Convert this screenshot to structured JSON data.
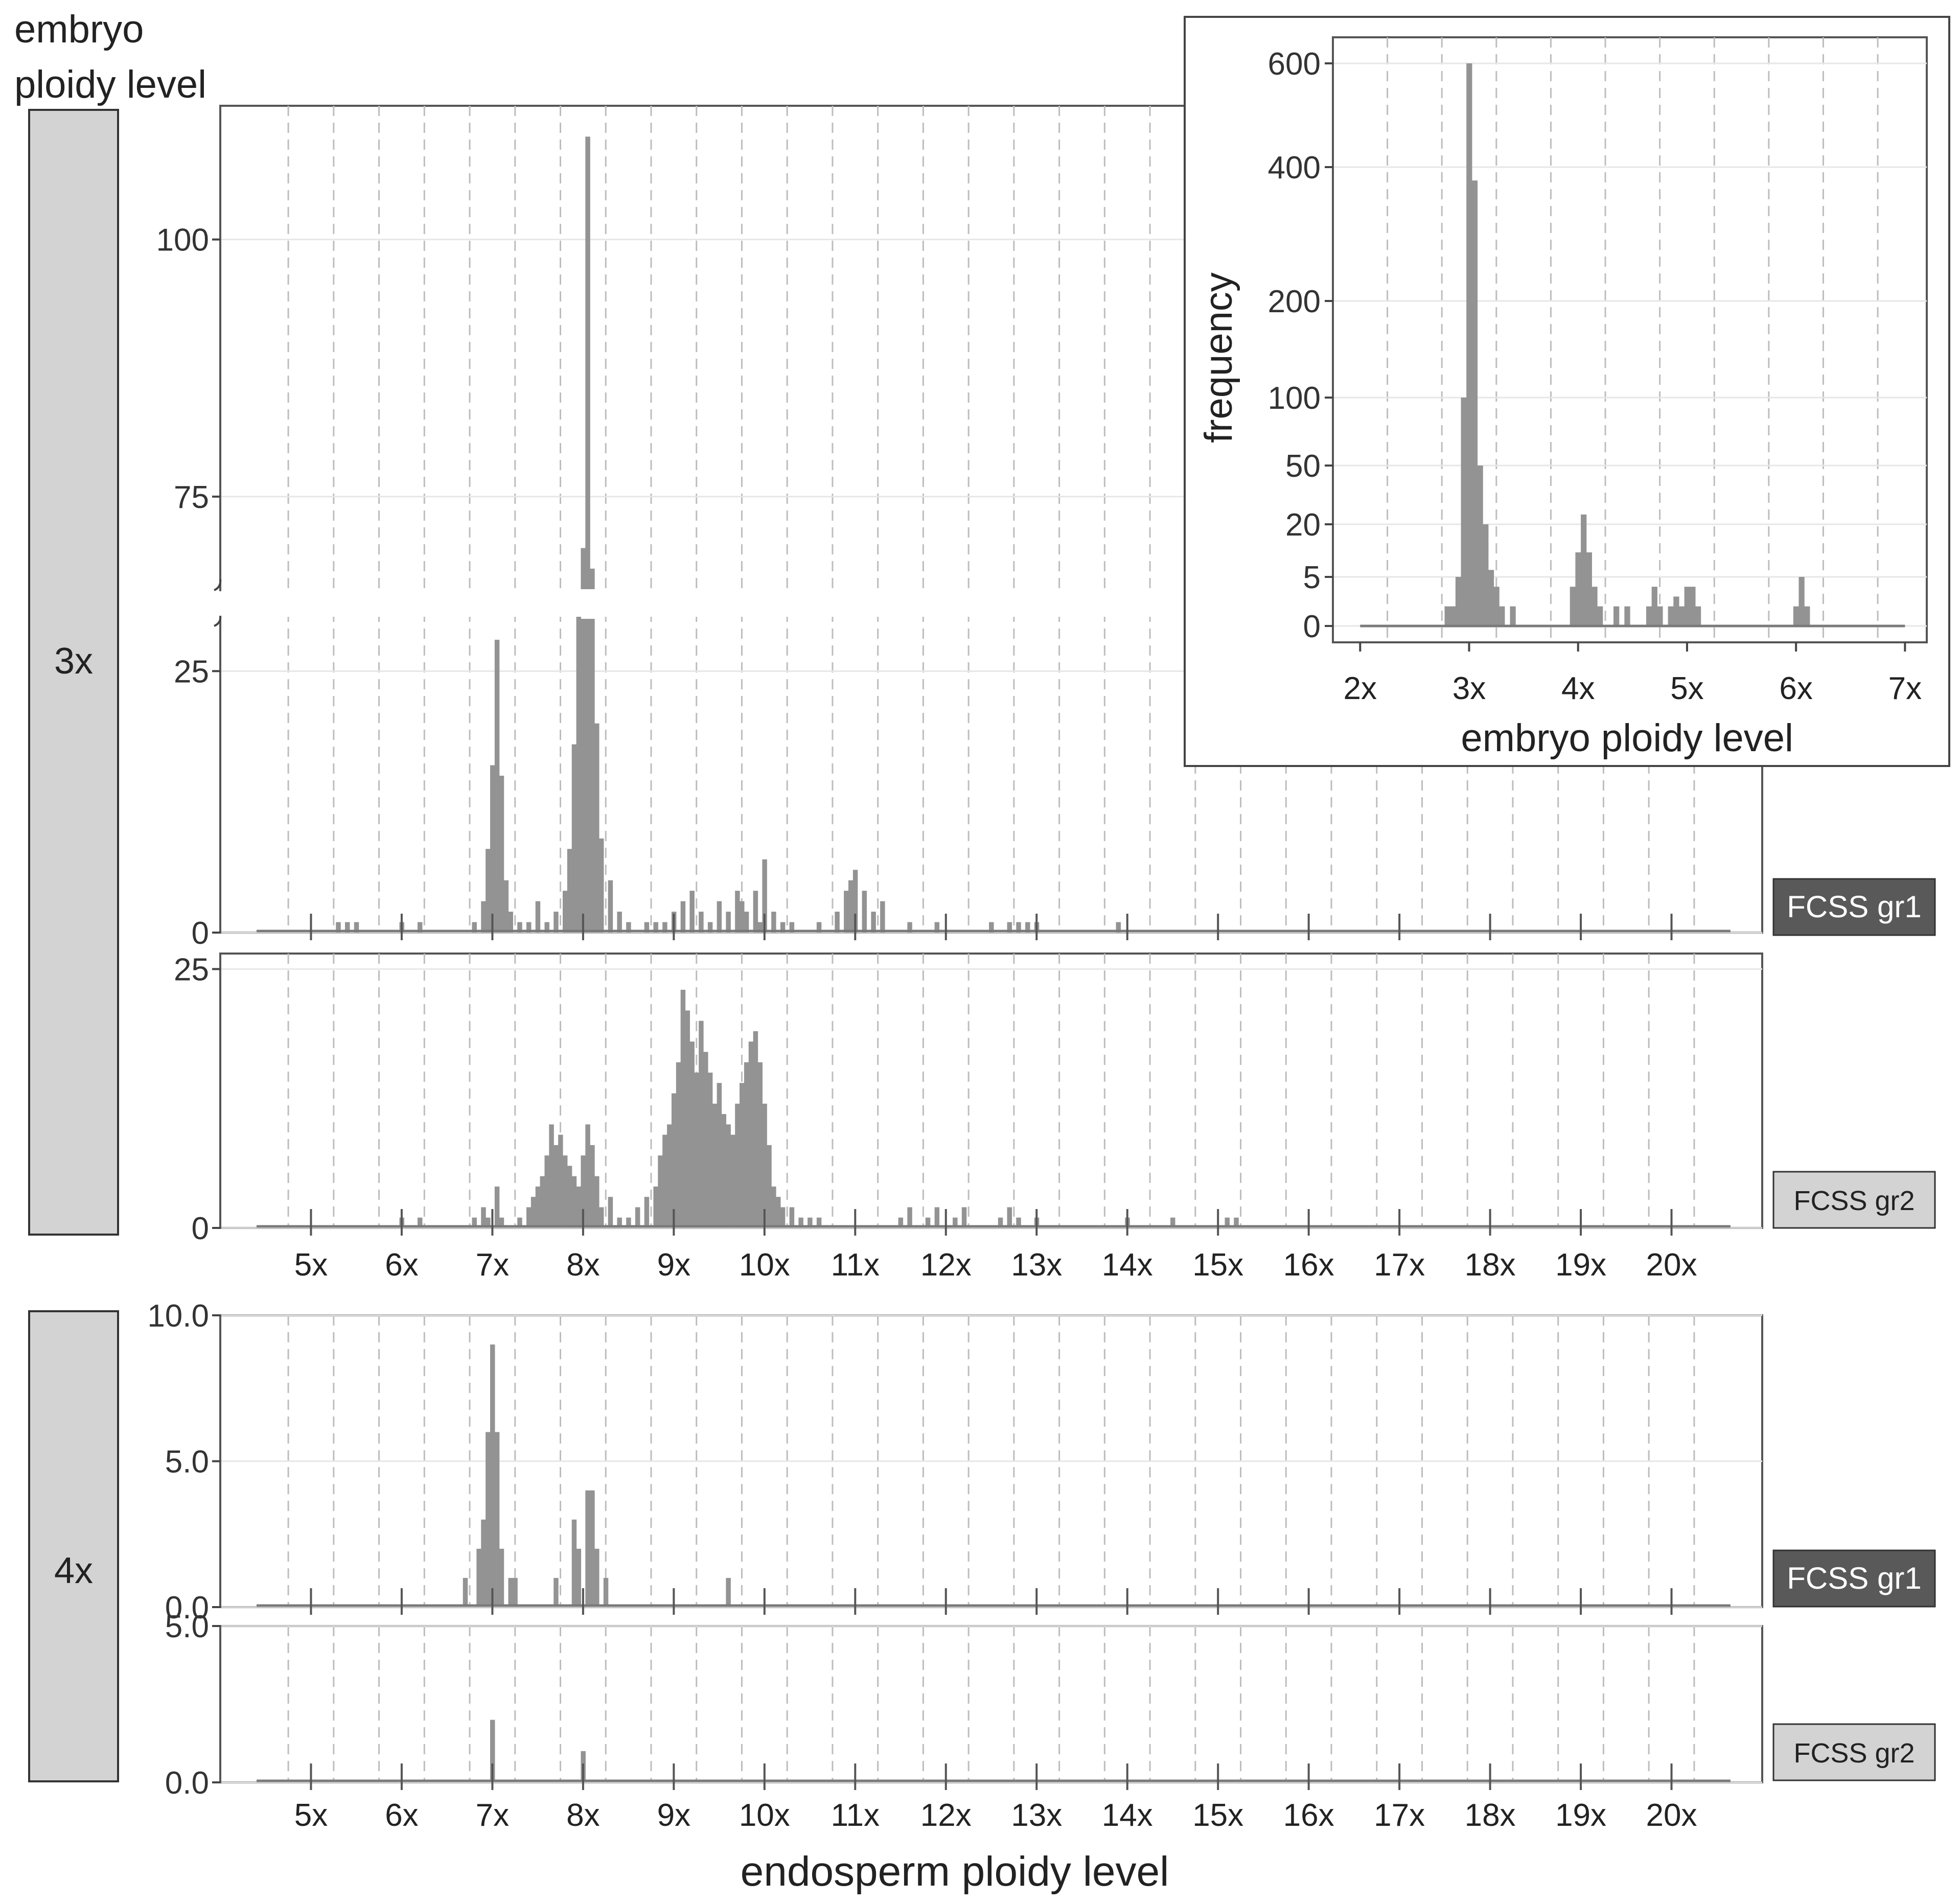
{
  "figure": {
    "corner_title_line1": "embryo",
    "corner_title_line2": "ploidy level",
    "x_axis_title": "endosperm ploidy level",
    "colors": {
      "bar": "#939393",
      "strip_3x": "#d3d3d3",
      "strip_4x": "#d3d3d3",
      "gr1_label_bg": "#595959",
      "gr2_label_bg": "#d3d3d3"
    }
  },
  "chart_data": [
    {
      "id": "3x-gr1",
      "type": "histogram",
      "group": "3x",
      "label": "FCSS gr1",
      "title": "",
      "xlabel": "endosperm ploidy level",
      "ylabel": "",
      "x_range": [
        4.0,
        21.0
      ],
      "broken_y_axis": true,
      "ylim_lower": [
        0,
        30
      ],
      "ylim_upper": [
        66,
        113
      ],
      "yticks_lower": [
        {
          "v": 0,
          "l": "0"
        },
        {
          "v": 25,
          "l": "25"
        }
      ],
      "yticks_upper": [
        {
          "v": 75,
          "l": "75"
        },
        {
          "v": 100,
          "l": "100"
        }
      ],
      "xticks": [
        {
          "v": 5,
          "l": "5x"
        },
        {
          "v": 6,
          "l": "6x"
        },
        {
          "v": 7,
          "l": "7x"
        },
        {
          "v": 8,
          "l": "8x"
        },
        {
          "v": 9,
          "l": "9x"
        },
        {
          "v": 10,
          "l": "10x"
        },
        {
          "v": 11,
          "l": "11x"
        },
        {
          "v": 12,
          "l": "12x"
        },
        {
          "v": 13,
          "l": "13x"
        },
        {
          "v": 14,
          "l": "14x"
        },
        {
          "v": 15,
          "l": "15x"
        },
        {
          "v": 16,
          "l": "16x"
        },
        {
          "v": 17,
          "l": "17x"
        },
        {
          "v": 18,
          "l": "18x"
        },
        {
          "v": 19,
          "l": "19x"
        },
        {
          "v": 20,
          "l": "20x"
        }
      ],
      "bins": [
        [
          5.3,
          1
        ],
        [
          5.4,
          1
        ],
        [
          5.5,
          1
        ],
        [
          6.0,
          1
        ],
        [
          6.2,
          1
        ],
        [
          6.8,
          1
        ],
        [
          6.9,
          3
        ],
        [
          6.95,
          8
        ],
        [
          7.0,
          16
        ],
        [
          7.05,
          28
        ],
        [
          7.1,
          15
        ],
        [
          7.15,
          5
        ],
        [
          7.2,
          2
        ],
        [
          7.3,
          1
        ],
        [
          7.4,
          1
        ],
        [
          7.5,
          3
        ],
        [
          7.6,
          1
        ],
        [
          7.7,
          2
        ],
        [
          7.8,
          4
        ],
        [
          7.85,
          8
        ],
        [
          7.9,
          18
        ],
        [
          7.95,
          32
        ],
        [
          8.0,
          70
        ],
        [
          8.05,
          110
        ],
        [
          8.1,
          68
        ],
        [
          8.15,
          20
        ],
        [
          8.2,
          9
        ],
        [
          8.3,
          5
        ],
        [
          8.4,
          2
        ],
        [
          8.5,
          1
        ],
        [
          8.7,
          1
        ],
        [
          8.8,
          1
        ],
        [
          8.9,
          1
        ],
        [
          9.0,
          2
        ],
        [
          9.1,
          3
        ],
        [
          9.2,
          4
        ],
        [
          9.3,
          2
        ],
        [
          9.4,
          1
        ],
        [
          9.5,
          3
        ],
        [
          9.6,
          2
        ],
        [
          9.7,
          4
        ],
        [
          9.75,
          3
        ],
        [
          9.8,
          2
        ],
        [
          9.9,
          4
        ],
        [
          9.95,
          1
        ],
        [
          10.0,
          7
        ],
        [
          10.1,
          2
        ],
        [
          10.2,
          1
        ],
        [
          10.3,
          1
        ],
        [
          10.6,
          1
        ],
        [
          10.8,
          2
        ],
        [
          10.9,
          4
        ],
        [
          10.95,
          5
        ],
        [
          11.0,
          6
        ],
        [
          11.1,
          4
        ],
        [
          11.2,
          2
        ],
        [
          11.3,
          3
        ],
        [
          11.6,
          1
        ],
        [
          11.9,
          1
        ],
        [
          12.5,
          1
        ],
        [
          12.7,
          1
        ],
        [
          12.8,
          1
        ],
        [
          12.9,
          1
        ],
        [
          13.0,
          1
        ],
        [
          13.9,
          1
        ]
      ]
    },
    {
      "id": "3x-gr2",
      "type": "histogram",
      "group": "3x",
      "label": "FCSS gr2",
      "title": "",
      "xlabel": "endosperm ploidy level",
      "ylabel": "",
      "x_range": [
        4.0,
        21.0
      ],
      "ylim": [
        0,
        26.5
      ],
      "yticks": [
        {
          "v": 0,
          "l": "0"
        },
        {
          "v": 25,
          "l": "25"
        }
      ],
      "xticks": [
        {
          "v": 5,
          "l": "5x"
        },
        {
          "v": 6,
          "l": "6x"
        },
        {
          "v": 7,
          "l": "7x"
        },
        {
          "v": 8,
          "l": "8x"
        },
        {
          "v": 9,
          "l": "9x"
        },
        {
          "v": 10,
          "l": "10x"
        },
        {
          "v": 11,
          "l": "11x"
        },
        {
          "v": 12,
          "l": "12x"
        },
        {
          "v": 13,
          "l": "13x"
        },
        {
          "v": 14,
          "l": "14x"
        },
        {
          "v": 15,
          "l": "15x"
        },
        {
          "v": 16,
          "l": "16x"
        },
        {
          "v": 17,
          "l": "17x"
        },
        {
          "v": 18,
          "l": "18x"
        },
        {
          "v": 19,
          "l": "19x"
        },
        {
          "v": 20,
          "l": "20x"
        }
      ],
      "bins": [
        [
          6.0,
          1
        ],
        [
          6.2,
          1
        ],
        [
          6.8,
          1
        ],
        [
          6.9,
          2
        ],
        [
          6.95,
          1
        ],
        [
          7.05,
          4
        ],
        [
          7.1,
          1
        ],
        [
          7.3,
          1
        ],
        [
          7.4,
          2
        ],
        [
          7.45,
          3
        ],
        [
          7.5,
          4
        ],
        [
          7.55,
          5
        ],
        [
          7.6,
          7
        ],
        [
          7.65,
          10
        ],
        [
          7.7,
          8
        ],
        [
          7.75,
          9
        ],
        [
          7.8,
          7
        ],
        [
          7.85,
          6
        ],
        [
          7.9,
          5
        ],
        [
          7.95,
          4
        ],
        [
          8.0,
          7
        ],
        [
          8.05,
          10
        ],
        [
          8.1,
          8
        ],
        [
          8.15,
          5
        ],
        [
          8.2,
          2
        ],
        [
          8.3,
          3
        ],
        [
          8.4,
          1
        ],
        [
          8.5,
          1
        ],
        [
          8.6,
          2
        ],
        [
          8.7,
          3
        ],
        [
          8.8,
          4
        ],
        [
          8.85,
          7
        ],
        [
          8.9,
          9
        ],
        [
          8.95,
          10
        ],
        [
          9.0,
          13
        ],
        [
          9.05,
          16
        ],
        [
          9.1,
          23
        ],
        [
          9.15,
          21
        ],
        [
          9.2,
          18
        ],
        [
          9.25,
          15
        ],
        [
          9.3,
          20
        ],
        [
          9.35,
          17
        ],
        [
          9.4,
          15
        ],
        [
          9.45,
          12
        ],
        [
          9.5,
          14
        ],
        [
          9.55,
          11
        ],
        [
          9.6,
          10
        ],
        [
          9.65,
          9
        ],
        [
          9.7,
          12
        ],
        [
          9.75,
          14
        ],
        [
          9.8,
          16
        ],
        [
          9.85,
          18
        ],
        [
          9.9,
          19
        ],
        [
          9.95,
          16
        ],
        [
          10.0,
          12
        ],
        [
          10.05,
          8
        ],
        [
          10.1,
          4
        ],
        [
          10.15,
          3
        ],
        [
          10.2,
          2
        ],
        [
          10.3,
          2
        ],
        [
          10.4,
          1
        ],
        [
          10.5,
          1
        ],
        [
          10.6,
          1
        ],
        [
          11.5,
          1
        ],
        [
          11.6,
          2
        ],
        [
          11.8,
          1
        ],
        [
          11.9,
          2
        ],
        [
          12.1,
          1
        ],
        [
          12.2,
          2
        ],
        [
          12.6,
          1
        ],
        [
          12.7,
          2
        ],
        [
          12.8,
          1
        ],
        [
          13.0,
          1
        ],
        [
          14.0,
          1
        ],
        [
          14.5,
          1
        ],
        [
          15.1,
          1
        ],
        [
          15.2,
          1
        ]
      ]
    },
    {
      "id": "4x-gr1",
      "type": "histogram",
      "group": "4x",
      "label": "FCSS gr1",
      "title": "",
      "xlabel": "endosperm ploidy level",
      "ylabel": "",
      "x_range": [
        4.0,
        21.0
      ],
      "ylim": [
        0,
        10.0
      ],
      "yticks": [
        {
          "v": 0,
          "l": "0.0"
        },
        {
          "v": 5,
          "l": "5.0"
        },
        {
          "v": 10,
          "l": "10.0"
        }
      ],
      "xticks": [
        {
          "v": 5,
          "l": "5x"
        },
        {
          "v": 6,
          "l": "6x"
        },
        {
          "v": 7,
          "l": "7x"
        },
        {
          "v": 8,
          "l": "8x"
        },
        {
          "v": 9,
          "l": "9x"
        },
        {
          "v": 10,
          "l": "10x"
        },
        {
          "v": 11,
          "l": "11x"
        },
        {
          "v": 12,
          "l": "12x"
        },
        {
          "v": 13,
          "l": "13x"
        },
        {
          "v": 14,
          "l": "14x"
        },
        {
          "v": 15,
          "l": "15x"
        },
        {
          "v": 16,
          "l": "16x"
        },
        {
          "v": 17,
          "l": "17x"
        },
        {
          "v": 18,
          "l": "18x"
        },
        {
          "v": 19,
          "l": "19x"
        },
        {
          "v": 20,
          "l": "20x"
        }
      ],
      "bins": [
        [
          6.7,
          1
        ],
        [
          6.85,
          2
        ],
        [
          6.9,
          3
        ],
        [
          6.95,
          6
        ],
        [
          7.0,
          9
        ],
        [
          7.05,
          6
        ],
        [
          7.1,
          2
        ],
        [
          7.2,
          1
        ],
        [
          7.25,
          1
        ],
        [
          7.7,
          1
        ],
        [
          7.9,
          3
        ],
        [
          7.95,
          2
        ],
        [
          8.05,
          4
        ],
        [
          8.1,
          4
        ],
        [
          8.15,
          2
        ],
        [
          8.25,
          1
        ],
        [
          9.6,
          1
        ]
      ]
    },
    {
      "id": "4x-gr2",
      "type": "histogram",
      "group": "4x",
      "label": "FCSS gr2",
      "title": "",
      "xlabel": "endosperm ploidy level",
      "ylabel": "",
      "x_range": [
        4.0,
        21.0
      ],
      "ylim": [
        0,
        5.0
      ],
      "yticks": [
        {
          "v": 0,
          "l": "0.0"
        },
        {
          "v": 5,
          "l": "5.0"
        }
      ],
      "xticks": [
        {
          "v": 5,
          "l": "5x"
        },
        {
          "v": 6,
          "l": "6x"
        },
        {
          "v": 7,
          "l": "7x"
        },
        {
          "v": 8,
          "l": "8x"
        },
        {
          "v": 9,
          "l": "9x"
        },
        {
          "v": 10,
          "l": "10x"
        },
        {
          "v": 11,
          "l": "11x"
        },
        {
          "v": 12,
          "l": "12x"
        },
        {
          "v": 13,
          "l": "13x"
        },
        {
          "v": 14,
          "l": "14x"
        },
        {
          "v": 15,
          "l": "15x"
        },
        {
          "v": 16,
          "l": "16x"
        },
        {
          "v": 17,
          "l": "17x"
        },
        {
          "v": 18,
          "l": "18x"
        },
        {
          "v": 19,
          "l": "19x"
        },
        {
          "v": 20,
          "l": "20x"
        }
      ],
      "bins": [
        [
          7.0,
          2
        ],
        [
          8.0,
          1
        ]
      ]
    },
    {
      "id": "inset",
      "type": "histogram",
      "label": "",
      "title": "",
      "xlabel": "embryo ploidy level",
      "ylabel": "frequency",
      "x_range": [
        1.75,
        7.2
      ],
      "y_scale": "pseudo-log (custom breaks)",
      "yticks": [
        {
          "v": 0,
          "l": "0"
        },
        {
          "v": 5,
          "l": "5"
        },
        {
          "v": 20,
          "l": "20"
        },
        {
          "v": 50,
          "l": "50"
        },
        {
          "v": 100,
          "l": "100"
        },
        {
          "v": 200,
          "l": "200"
        },
        {
          "v": 400,
          "l": "400"
        },
        {
          "v": 600,
          "l": "600"
        }
      ],
      "xticks": [
        {
          "v": 2,
          "l": "2x"
        },
        {
          "v": 3,
          "l": "3x"
        },
        {
          "v": 4,
          "l": "4x"
        },
        {
          "v": 5,
          "l": "5x"
        },
        {
          "v": 6,
          "l": "6x"
        },
        {
          "v": 7,
          "l": "7x"
        }
      ],
      "bins": [
        [
          2.8,
          2
        ],
        [
          2.85,
          2
        ],
        [
          2.9,
          5
        ],
        [
          2.95,
          100
        ],
        [
          3.0,
          600
        ],
        [
          3.05,
          380
        ],
        [
          3.1,
          50
        ],
        [
          3.15,
          20
        ],
        [
          3.2,
          7
        ],
        [
          3.25,
          4
        ],
        [
          3.3,
          2
        ],
        [
          3.4,
          2
        ],
        [
          3.95,
          4
        ],
        [
          4.0,
          12
        ],
        [
          4.05,
          25
        ],
        [
          4.1,
          12
        ],
        [
          4.15,
          4
        ],
        [
          4.2,
          2
        ],
        [
          4.35,
          2
        ],
        [
          4.45,
          2
        ],
        [
          4.65,
          2
        ],
        [
          4.7,
          4
        ],
        [
          4.75,
          2
        ],
        [
          4.85,
          2
        ],
        [
          4.9,
          3
        ],
        [
          4.95,
          2
        ],
        [
          5.0,
          4
        ],
        [
          5.05,
          4
        ],
        [
          5.1,
          2
        ],
        [
          6.0,
          2
        ],
        [
          6.05,
          5
        ],
        [
          6.1,
          2
        ]
      ]
    }
  ]
}
